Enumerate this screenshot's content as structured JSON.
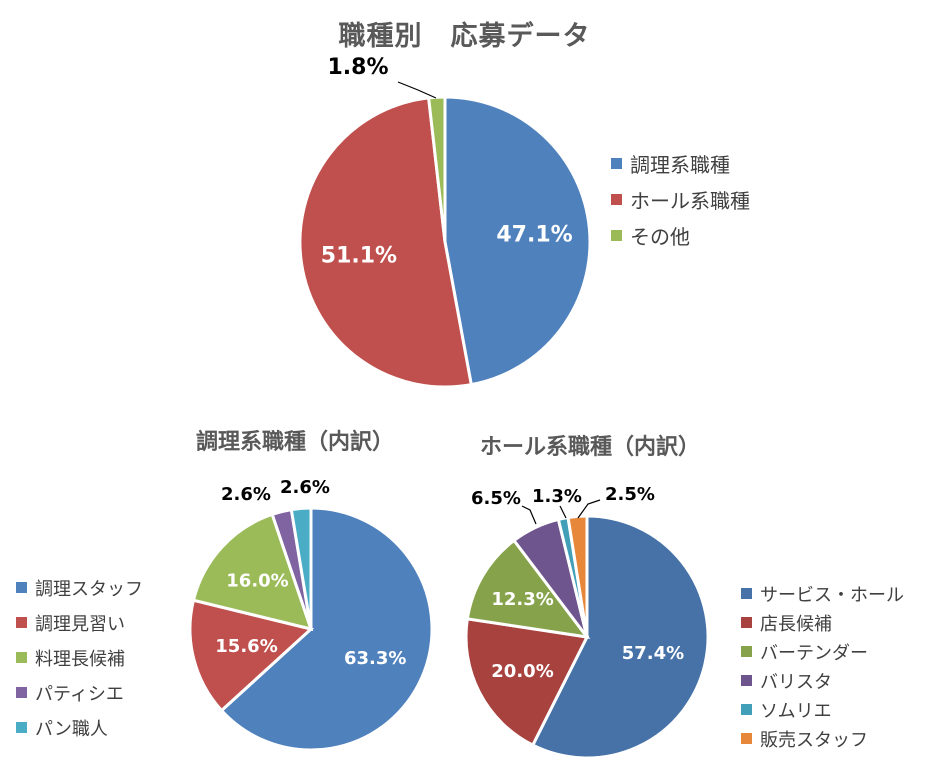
{
  "titles": {
    "main": "職種別　応募データ",
    "cooking": "調理系職種（内訳）",
    "hall": "ホール系職種（内訳）"
  },
  "chart_data": [
    {
      "type": "pie",
      "title": "職種別　応募データ",
      "categories": [
        "調理系職種",
        "ホール系職種",
        "その他"
      ],
      "values": [
        47.1,
        51.1,
        1.8
      ],
      "labels": [
        "47.1%",
        "51.1%",
        "1.8%"
      ],
      "colors": [
        "#4F81BD",
        "#C0504D",
        "#9BBB59"
      ],
      "legend": "right"
    },
    {
      "type": "pie",
      "title": "調理系職種（内訳）",
      "categories": [
        "調理スタッフ",
        "調理見習い",
        "料理長候補",
        "パティシエ",
        "パン職人"
      ],
      "values": [
        63.3,
        15.6,
        16.0,
        2.6,
        2.6
      ],
      "labels": [
        "63.3%",
        "15.6%",
        "16.0%",
        "2.6%",
        "2.6%"
      ],
      "colors": [
        "#4F81BD",
        "#C0504D",
        "#9BBB59",
        "#8064A2",
        "#4BACC6"
      ],
      "legend": "left"
    },
    {
      "type": "pie",
      "title": "ホール系職種（内訳）",
      "categories": [
        "サービス・ホール",
        "店長候補",
        "バーテンダー",
        "バリスタ",
        "ソムリエ",
        "販売スタッフ"
      ],
      "values": [
        57.4,
        20.0,
        12.3,
        6.5,
        1.3,
        2.5
      ],
      "labels": [
        "57.4%",
        "20.0%",
        "12.3%",
        "6.5%",
        "1.3%",
        "2.5%"
      ],
      "colors": [
        "#4672A8",
        "#A7423F",
        "#86A34B",
        "#6F558E",
        "#41A0B8",
        "#E6873A"
      ],
      "legend": "right"
    }
  ]
}
